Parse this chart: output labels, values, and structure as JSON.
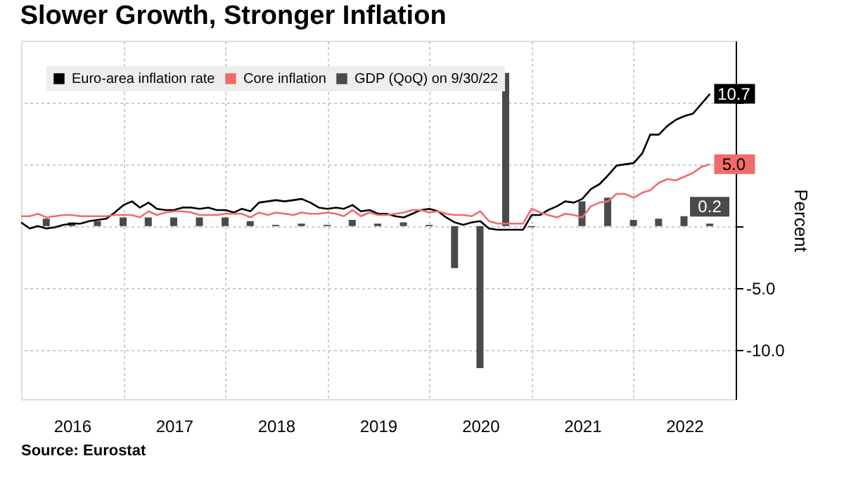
{
  "chart_data": {
    "type": "line",
    "title": "Slower Growth, Stronger Inflation",
    "ylabel": "Percent",
    "x": [
      "2016-01",
      "2016-02",
      "2016-03",
      "2016-04",
      "2016-05",
      "2016-06",
      "2016-07",
      "2016-08",
      "2016-09",
      "2016-10",
      "2016-11",
      "2016-12",
      "2017-01",
      "2017-02",
      "2017-03",
      "2017-04",
      "2017-05",
      "2017-06",
      "2017-07",
      "2017-08",
      "2017-09",
      "2017-10",
      "2017-11",
      "2017-12",
      "2018-01",
      "2018-02",
      "2018-03",
      "2018-04",
      "2018-05",
      "2018-06",
      "2018-07",
      "2018-08",
      "2018-09",
      "2018-10",
      "2018-11",
      "2018-12",
      "2019-01",
      "2019-02",
      "2019-03",
      "2019-04",
      "2019-05",
      "2019-06",
      "2019-07",
      "2019-08",
      "2019-09",
      "2019-10",
      "2019-11",
      "2019-12",
      "2020-01",
      "2020-02",
      "2020-03",
      "2020-04",
      "2020-05",
      "2020-06",
      "2020-07",
      "2020-08",
      "2020-09",
      "2020-10",
      "2020-11",
      "2020-12",
      "2021-01",
      "2021-02",
      "2021-03",
      "2021-04",
      "2021-05",
      "2021-06",
      "2021-07",
      "2021-08",
      "2021-09",
      "2021-10",
      "2021-11",
      "2021-12",
      "2022-01",
      "2022-02",
      "2022-03",
      "2022-04",
      "2022-05",
      "2022-06",
      "2022-07",
      "2022-08",
      "2022-09",
      "2022-10"
    ],
    "series": [
      {
        "name": "Euro-area inflation rate",
        "color": "#000000",
        "values": [
          0.3,
          -0.2,
          0.0,
          -0.2,
          -0.1,
          0.1,
          0.2,
          0.2,
          0.4,
          0.5,
          0.6,
          1.1,
          1.7,
          2.0,
          1.5,
          1.9,
          1.4,
          1.3,
          1.3,
          1.5,
          1.5,
          1.4,
          1.5,
          1.3,
          1.3,
          1.1,
          1.4,
          1.2,
          1.9,
          2.0,
          2.1,
          2.0,
          2.1,
          2.2,
          1.9,
          1.5,
          1.4,
          1.5,
          1.4,
          1.7,
          1.2,
          1.3,
          1.0,
          1.0,
          0.8,
          0.7,
          1.0,
          1.3,
          1.4,
          1.2,
          0.7,
          0.3,
          0.1,
          0.3,
          0.4,
          -0.2,
          -0.3,
          -0.3,
          -0.3,
          -0.3,
          0.9,
          0.9,
          1.3,
          1.6,
          2.0,
          1.9,
          2.2,
          3.0,
          3.4,
          4.1,
          4.9,
          5.0,
          5.1,
          5.9,
          7.4,
          7.4,
          8.1,
          8.6,
          8.9,
          9.1,
          9.9,
          10.7
        ],
        "value_labels": [
          null,
          null,
          null,
          null,
          null,
          null,
          null,
          null,
          null,
          null,
          null,
          null,
          null,
          null,
          null,
          null,
          null,
          null,
          null,
          null,
          null,
          null,
          null,
          null,
          null,
          null,
          null,
          null,
          null,
          null,
          null,
          null,
          null,
          null,
          null,
          null,
          null,
          null,
          null,
          null,
          null,
          null,
          null,
          null,
          null,
          null,
          null,
          null,
          null,
          null,
          null,
          null,
          null,
          null,
          null,
          null,
          null,
          null,
          null,
          null,
          null,
          null,
          null,
          null,
          null,
          null,
          null,
          null,
          null,
          null,
          null,
          null,
          null,
          null,
          null,
          null,
          null,
          null,
          null,
          null,
          null,
          "10.7"
        ]
      },
      {
        "name": "Core inflation",
        "color": "#f26b6b",
        "values": [
          0.8,
          0.8,
          1.0,
          0.7,
          0.8,
          0.9,
          0.9,
          0.8,
          0.8,
          0.8,
          0.8,
          0.9,
          0.9,
          0.9,
          0.7,
          1.2,
          0.9,
          1.1,
          1.2,
          1.2,
          1.1,
          0.9,
          0.9,
          0.9,
          1.0,
          1.0,
          1.0,
          0.7,
          1.1,
          0.9,
          1.1,
          1.0,
          0.9,
          1.1,
          1.0,
          1.0,
          1.1,
          1.0,
          0.8,
          1.3,
          0.8,
          1.1,
          0.9,
          0.9,
          1.0,
          1.1,
          1.3,
          1.3,
          1.1,
          1.2,
          1.0,
          0.9,
          0.9,
          0.8,
          1.2,
          0.4,
          0.2,
          0.2,
          0.2,
          0.2,
          1.4,
          1.1,
          0.9,
          0.7,
          1.0,
          0.9,
          0.7,
          1.6,
          1.9,
          2.0,
          2.6,
          2.6,
          2.3,
          2.7,
          2.9,
          3.5,
          3.8,
          3.7,
          4.0,
          4.3,
          4.8,
          5.0
        ],
        "value_labels": [
          null,
          null,
          null,
          null,
          null,
          null,
          null,
          null,
          null,
          null,
          null,
          null,
          null,
          null,
          null,
          null,
          null,
          null,
          null,
          null,
          null,
          null,
          null,
          null,
          null,
          null,
          null,
          null,
          null,
          null,
          null,
          null,
          null,
          null,
          null,
          null,
          null,
          null,
          null,
          null,
          null,
          null,
          null,
          null,
          null,
          null,
          null,
          null,
          null,
          null,
          null,
          null,
          null,
          null,
          null,
          null,
          null,
          null,
          null,
          null,
          null,
          null,
          null,
          null,
          null,
          null,
          null,
          null,
          null,
          null,
          null,
          null,
          null,
          null,
          null,
          null,
          null,
          null,
          null,
          null,
          null,
          "5.0"
        ]
      },
      {
        "name": "GDP (QoQ) on 9/30/22",
        "color": "#4a4a4a",
        "type": "bar",
        "x": [
          "2016-03-31",
          "2016-06-30",
          "2016-09-30",
          "2016-12-31",
          "2017-03-31",
          "2017-06-30",
          "2017-09-30",
          "2017-12-31",
          "2018-03-31",
          "2018-06-30",
          "2018-09-30",
          "2018-12-31",
          "2019-03-31",
          "2019-06-30",
          "2019-09-30",
          "2019-12-31",
          "2020-03-31",
          "2020-06-30",
          "2020-09-30",
          "2020-12-31",
          "2021-03-31",
          "2021-06-30",
          "2021-09-30",
          "2021-12-31",
          "2022-03-31",
          "2022-06-30",
          "2022-09-30"
        ],
        "values": [
          0.6,
          0.3,
          0.4,
          0.7,
          0.7,
          0.7,
          0.7,
          0.7,
          0.4,
          0.1,
          0.2,
          0.1,
          0.5,
          0.2,
          0.3,
          0.1,
          -3.4,
          -11.5,
          12.4,
          -0.1,
          0.0,
          2.0,
          2.3,
          0.5,
          0.6,
          0.8,
          0.2
        ],
        "value_labels": [
          null,
          null,
          null,
          null,
          null,
          null,
          null,
          null,
          null,
          null,
          null,
          null,
          null,
          null,
          null,
          null,
          null,
          null,
          null,
          null,
          null,
          null,
          null,
          null,
          null,
          null,
          "0.2"
        ]
      }
    ],
    "xlim": [
      "2016-01-01",
      "2023-01-01"
    ],
    "xticks": [
      {
        "value": "2016-07-01",
        "label": "2016"
      },
      {
        "value": "2017-01-01",
        "label": null
      },
      {
        "value": "2017-07-01",
        "label": "2017"
      },
      {
        "value": "2018-01-01",
        "label": null
      },
      {
        "value": "2018-07-01",
        "label": "2018"
      },
      {
        "value": "2019-01-01",
        "label": null
      },
      {
        "value": "2019-07-01",
        "label": "2019"
      },
      {
        "value": "2020-01-01",
        "label": null
      },
      {
        "value": "2020-07-01",
        "label": "2020"
      },
      {
        "value": "2021-01-01",
        "label": null
      },
      {
        "value": "2021-07-01",
        "label": "2021"
      },
      {
        "value": "2022-01-01",
        "label": null
      },
      {
        "value": "2022-07-01",
        "label": "2022"
      }
    ],
    "ylim": [
      -14,
      15
    ],
    "yticks": [
      {
        "value": -10,
        "label": "-10.0"
      },
      {
        "value": -5,
        "label": "-5.0"
      },
      {
        "value": 0,
        "label": null
      },
      {
        "value": 5,
        "label": null
      },
      {
        "value": 10,
        "label": null
      }
    ],
    "grid": true,
    "legend": "top left",
    "line_style": "solid",
    "annotations": [
      "Source: Eurostat"
    ]
  }
}
